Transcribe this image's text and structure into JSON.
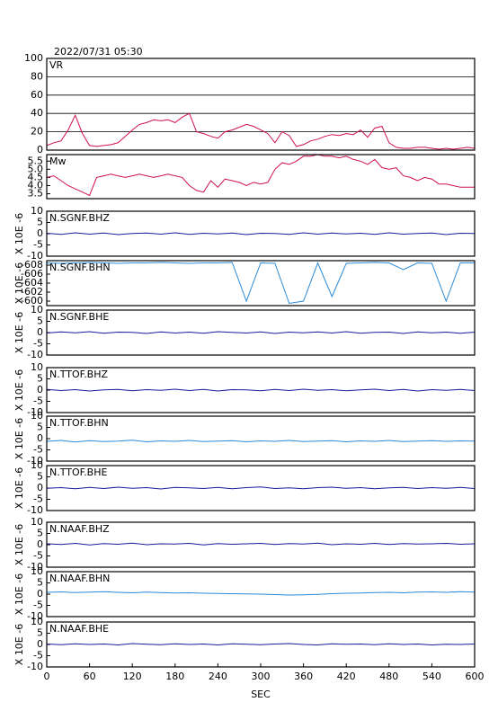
{
  "chart_data": [
    {
      "type": "line",
      "title": "2022/07/31 05:30",
      "label": "VR",
      "color": "#d0104c",
      "grid": true,
      "xlim": [
        0,
        600
      ],
      "ylim": [
        0,
        100
      ],
      "yticks": [
        0,
        20,
        40,
        60,
        80,
        100
      ],
      "x": [
        0,
        10,
        20,
        30,
        40,
        50,
        60,
        70,
        80,
        90,
        100,
        110,
        120,
        130,
        140,
        150,
        160,
        170,
        180,
        190,
        200,
        210,
        220,
        230,
        240,
        250,
        260,
        270,
        280,
        290,
        300,
        310,
        320,
        330,
        340,
        350,
        360,
        370,
        380,
        390,
        400,
        410,
        420,
        430,
        440,
        450,
        460,
        470,
        480,
        490,
        500,
        510,
        520,
        530,
        540,
        550,
        560,
        570,
        580,
        590,
        600
      ],
      "values": [
        5,
        8,
        10,
        22,
        38,
        18,
        5,
        4,
        5,
        6,
        8,
        15,
        22,
        28,
        30,
        33,
        32,
        33,
        30,
        36,
        40,
        20,
        18,
        15,
        13,
        20,
        22,
        25,
        28,
        26,
        22,
        18,
        8,
        20,
        16,
        4,
        6,
        10,
        12,
        15,
        17,
        16,
        18,
        17,
        22,
        14,
        24,
        26,
        8,
        3,
        2,
        2,
        3,
        3,
        2,
        1,
        2,
        1,
        2,
        3,
        2
      ]
    },
    {
      "type": "line",
      "label": "Mw",
      "color": "#d0104c",
      "grid": false,
      "xlim": [
        0,
        600
      ],
      "ylim": [
        3.2,
        5.9
      ],
      "yticks": [
        3.5,
        {
          "value": 4,
          "label": "4.0"
        },
        4.5,
        {
          "value": 5,
          "label": "5.0"
        },
        5.5
      ],
      "x": [
        0,
        10,
        20,
        30,
        40,
        50,
        60,
        70,
        80,
        90,
        100,
        110,
        120,
        130,
        140,
        150,
        160,
        170,
        180,
        190,
        200,
        210,
        220,
        230,
        240,
        250,
        260,
        270,
        280,
        290,
        300,
        310,
        320,
        330,
        340,
        350,
        360,
        370,
        380,
        390,
        400,
        410,
        420,
        430,
        440,
        450,
        460,
        470,
        480,
        490,
        500,
        510,
        520,
        530,
        540,
        550,
        560,
        570,
        580,
        590,
        600
      ],
      "values": [
        4.5,
        4.6,
        4.3,
        4.0,
        3.8,
        3.6,
        3.4,
        4.5,
        4.6,
        4.7,
        4.6,
        4.5,
        4.6,
        4.7,
        4.6,
        4.5,
        4.6,
        4.7,
        4.6,
        4.5,
        4.0,
        3.7,
        3.6,
        4.3,
        3.9,
        4.4,
        4.3,
        4.2,
        4.0,
        4.2,
        4.1,
        4.2,
        5.0,
        5.4,
        5.3,
        5.5,
        5.8,
        5.8,
        5.9,
        5.8,
        5.8,
        5.7,
        5.8,
        5.6,
        5.5,
        5.3,
        5.6,
        5.1,
        5.0,
        5.1,
        4.6,
        4.5,
        4.3,
        4.5,
        4.4,
        4.1,
        4.1,
        4.0,
        3.9,
        3.9,
        3.9
      ]
    },
    {
      "type": "line",
      "label": "N.SGNF.BHZ",
      "ylabel": "X 10E -6",
      "color": "#1a1a9a",
      "xlim": [
        0,
        600
      ],
      "ylim": [
        -10,
        10
      ],
      "yticks": [
        -10,
        -5,
        0,
        5,
        10
      ],
      "x": [
        0,
        20,
        40,
        60,
        80,
        100,
        120,
        140,
        160,
        180,
        200,
        220,
        240,
        260,
        280,
        300,
        320,
        340,
        360,
        380,
        400,
        420,
        440,
        460,
        480,
        500,
        520,
        540,
        560,
        580,
        600
      ],
      "values": [
        0.2,
        -0.3,
        0.4,
        -0.2,
        0.3,
        -0.4,
        0.1,
        0.3,
        -0.2,
        0.4,
        -0.3,
        0.2,
        -0.1,
        0.3,
        -0.4,
        0.2,
        0.1,
        -0.3,
        0.4,
        -0.2,
        0.3,
        -0.1,
        0.2,
        -0.3,
        0.4,
        -0.2,
        0.1,
        0.3,
        -0.4,
        0.2,
        0.1
      ]
    },
    {
      "type": "line",
      "label": "N.SGNF.BHN",
      "ylabel": "X 10E -6",
      "color": "#2a8ad8",
      "xlim": [
        0,
        600
      ],
      "ylim": [
        -599,
        -609
      ],
      "yticks": [
        -600,
        -602,
        -604,
        -606,
        -608
      ],
      "x": [
        0,
        20,
        40,
        60,
        80,
        100,
        120,
        140,
        160,
        180,
        200,
        220,
        240,
        260,
        280,
        300,
        320,
        340,
        360,
        380,
        400,
        420,
        440,
        460,
        480,
        500,
        520,
        540,
        560,
        580,
        600
      ],
      "values": [
        -608.5,
        -608.4,
        -608.5,
        -608.6,
        -608.5,
        -608.4,
        -608.5,
        -608.5,
        -608.6,
        -608.5,
        -608.4,
        -608.5,
        -608.5,
        -608.6,
        -600,
        -608.5,
        -608.4,
        -599.5,
        -600,
        -608.5,
        -601,
        -608.4,
        -608.5,
        -608.6,
        -608.5,
        -607,
        -608.5,
        -608.4,
        -600,
        -608.5,
        -608.5
      ]
    },
    {
      "type": "line",
      "label": "N.SGNF.BHE",
      "ylabel": "X 10E -6",
      "color": "#1a1a9a",
      "xlim": [
        0,
        600
      ],
      "ylim": [
        -10,
        10
      ],
      "yticks": [
        -10,
        -5,
        0,
        5,
        10
      ],
      "x": [
        0,
        20,
        40,
        60,
        80,
        100,
        120,
        140,
        160,
        180,
        200,
        220,
        240,
        260,
        280,
        300,
        320,
        340,
        360,
        380,
        400,
        420,
        440,
        460,
        480,
        500,
        520,
        540,
        560,
        580,
        600
      ],
      "values": [
        -0.2,
        0.3,
        -0.1,
        0.4,
        -0.3,
        0.2,
        0.1,
        -0.4,
        0.3,
        -0.2,
        0.2,
        -0.3,
        0.4,
        0.1,
        -0.2,
        0.3,
        -0.4,
        0.2,
        -0.1,
        0.3,
        -0.2,
        0.4,
        -0.3,
        0.1,
        0.2,
        -0.4,
        0.3,
        -0.1,
        0.2,
        -0.3,
        0.2
      ]
    },
    {
      "type": "line",
      "label": "N.TTOF.BHZ",
      "ylabel": "X 10E -6",
      "color": "#1a1a9a",
      "xlim": [
        0,
        600
      ],
      "ylim": [
        -10,
        10
      ],
      "yticks": [
        -10,
        -5,
        0,
        5,
        10
      ],
      "x": [
        0,
        20,
        40,
        60,
        80,
        100,
        120,
        140,
        160,
        180,
        200,
        220,
        240,
        260,
        280,
        300,
        320,
        340,
        360,
        380,
        400,
        420,
        440,
        460,
        480,
        500,
        520,
        540,
        560,
        580,
        600
      ],
      "values": [
        0.3,
        -0.2,
        0.2,
        -0.4,
        0.1,
        0.3,
        -0.3,
        0.2,
        -0.1,
        0.4,
        -0.2,
        0.3,
        -0.4,
        0.2,
        0.1,
        -0.3,
        0.3,
        -0.2,
        0.4,
        -0.1,
        0.2,
        -0.3,
        0.1,
        0.4,
        -0.2,
        0.3,
        -0.4,
        0.2,
        -0.1,
        0.3,
        -0.2
      ]
    },
    {
      "type": "line",
      "label": "N.TTOF.BHN",
      "ylabel": "X 10E -6",
      "color": "#2a8ad8",
      "xlim": [
        0,
        600
      ],
      "ylim": [
        -10,
        10
      ],
      "yticks": [
        -10,
        -5,
        0,
        5,
        10
      ],
      "x": [
        0,
        20,
        40,
        60,
        80,
        100,
        120,
        140,
        160,
        180,
        200,
        220,
        240,
        260,
        280,
        300,
        320,
        340,
        360,
        380,
        400,
        420,
        440,
        460,
        480,
        500,
        520,
        540,
        560,
        580,
        600
      ],
      "values": [
        -1.2,
        -0.8,
        -1.5,
        -0.9,
        -1.3,
        -1.1,
        -0.7,
        -1.4,
        -1.0,
        -1.2,
        -0.8,
        -1.3,
        -1.1,
        -0.9,
        -1.4,
        -1.0,
        -1.2,
        -0.8,
        -1.3,
        -1.1,
        -0.9,
        -1.4,
        -1.0,
        -1.2,
        -0.8,
        -1.3,
        -1.1,
        -0.9,
        -1.2,
        -1.0,
        -1.1
      ]
    },
    {
      "type": "line",
      "label": "N.TTOF.BHE",
      "ylabel": "X 10E -6",
      "color": "#1a1a9a",
      "xlim": [
        0,
        600
      ],
      "ylim": [
        -10,
        10
      ],
      "yticks": [
        -10,
        -5,
        0,
        5,
        10
      ],
      "x": [
        0,
        20,
        40,
        60,
        80,
        100,
        120,
        140,
        160,
        180,
        200,
        220,
        240,
        260,
        280,
        300,
        320,
        340,
        360,
        380,
        400,
        420,
        440,
        460,
        480,
        500,
        520,
        540,
        560,
        580,
        600
      ],
      "values": [
        -0.1,
        0.2,
        -0.3,
        0.3,
        -0.2,
        0.4,
        -0.1,
        0.2,
        -0.4,
        0.3,
        0.1,
        -0.2,
        0.3,
        -0.3,
        0.2,
        0.5,
        -0.2,
        0.1,
        -0.3,
        0.2,
        0.4,
        -0.1,
        0.2,
        -0.3,
        0.1,
        0.3,
        -0.2,
        0.2,
        -0.1,
        0.3,
        -0.2
      ]
    },
    {
      "type": "line",
      "label": "N.NAAF.BHZ",
      "ylabel": "X 10E -6",
      "color": "#1a1a9a",
      "xlim": [
        0,
        600
      ],
      "ylim": [
        -10,
        10
      ],
      "yticks": [
        -10,
        -5,
        0,
        5,
        10
      ],
      "x": [
        0,
        20,
        40,
        60,
        80,
        100,
        120,
        140,
        160,
        180,
        200,
        220,
        240,
        260,
        280,
        300,
        320,
        340,
        360,
        380,
        400,
        420,
        440,
        460,
        480,
        500,
        520,
        540,
        560,
        580,
        600
      ],
      "values": [
        0.4,
        0.1,
        0.6,
        -0.1,
        0.5,
        0.2,
        0.7,
        0.0,
        0.4,
        0.3,
        0.6,
        -0.1,
        0.5,
        0.2,
        0.4,
        0.6,
        0.1,
        0.5,
        0.3,
        0.7,
        0.0,
        0.4,
        0.2,
        0.6,
        0.1,
        0.5,
        0.3,
        0.4,
        0.6,
        0.2,
        0.4
      ]
    },
    {
      "type": "line",
      "label": "N.NAAF.BHN",
      "ylabel": "X 10E -6",
      "color": "#2a8ad8",
      "xlim": [
        0,
        600
      ],
      "ylim": [
        -10,
        10
      ],
      "yticks": [
        -10,
        -5,
        0,
        5,
        10
      ],
      "x": [
        0,
        20,
        40,
        60,
        80,
        100,
        120,
        140,
        160,
        180,
        200,
        220,
        240,
        260,
        280,
        300,
        320,
        340,
        360,
        380,
        400,
        420,
        440,
        460,
        480,
        500,
        520,
        540,
        560,
        580,
        600
      ],
      "values": [
        0.8,
        1.0,
        0.7,
        0.9,
        1.1,
        0.8,
        0.6,
        0.9,
        0.7,
        0.5,
        0.6,
        0.4,
        0.3,
        0.2,
        0.1,
        0.0,
        -0.2,
        -0.4,
        -0.3,
        -0.1,
        0.2,
        0.4,
        0.5,
        0.7,
        0.8,
        0.6,
        0.9,
        1.0,
        0.8,
        1.1,
        0.9
      ]
    },
    {
      "type": "line",
      "label": "N.NAAF.BHE",
      "ylabel": "X 10E -6",
      "xlabel": "SEC",
      "color": "#1a1a9a",
      "xlim": [
        0,
        600
      ],
      "ylim": [
        -10,
        10
      ],
      "yticks": [
        -10,
        -5,
        0,
        5,
        10
      ],
      "xticks": [
        0,
        60,
        120,
        180,
        240,
        300,
        360,
        420,
        480,
        540,
        600
      ],
      "x": [
        0,
        20,
        40,
        60,
        80,
        100,
        120,
        140,
        160,
        180,
        200,
        220,
        240,
        260,
        280,
        300,
        320,
        340,
        360,
        380,
        400,
        420,
        440,
        460,
        480,
        500,
        520,
        540,
        560,
        580,
        600
      ],
      "values": [
        0.2,
        -0.1,
        0.3,
        0.0,
        0.2,
        -0.2,
        0.4,
        0.1,
        -0.1,
        0.3,
        0.0,
        0.2,
        -0.2,
        0.3,
        0.1,
        -0.1,
        0.2,
        0.4,
        0.0,
        -0.2,
        0.3,
        0.1,
        0.2,
        -0.1,
        0.3,
        0.0,
        0.2,
        -0.2,
        0.1,
        0.0,
        0.2
      ]
    }
  ]
}
